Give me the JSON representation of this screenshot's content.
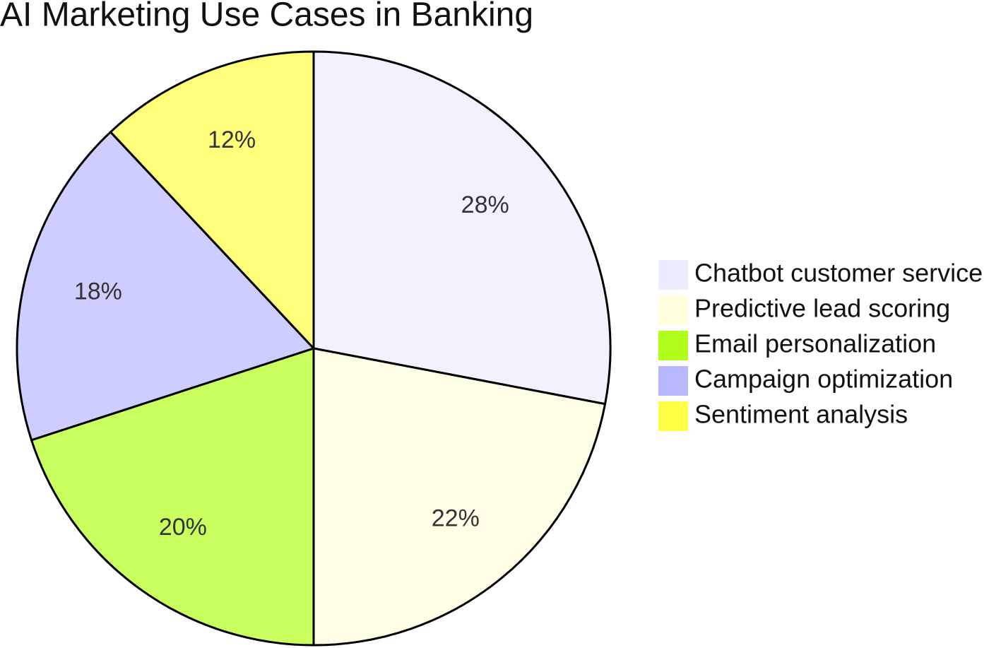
{
  "chart_data": {
    "type": "pie",
    "title": "AI Marketing Use Cases in Banking",
    "categories": [
      "Chatbot customer service",
      "Predictive lead scoring",
      "Email personalization",
      "Campaign optimization",
      "Sentiment analysis"
    ],
    "values": [
      28,
      22,
      20,
      18,
      12
    ],
    "value_labels": [
      "28%",
      "22%",
      "20%",
      "18%",
      "12%"
    ],
    "colors": [
      "#ececff",
      "#ffffde",
      "#b0ff1a",
      "#b8b8ff",
      "#ffff44"
    ],
    "legend": "right"
  }
}
